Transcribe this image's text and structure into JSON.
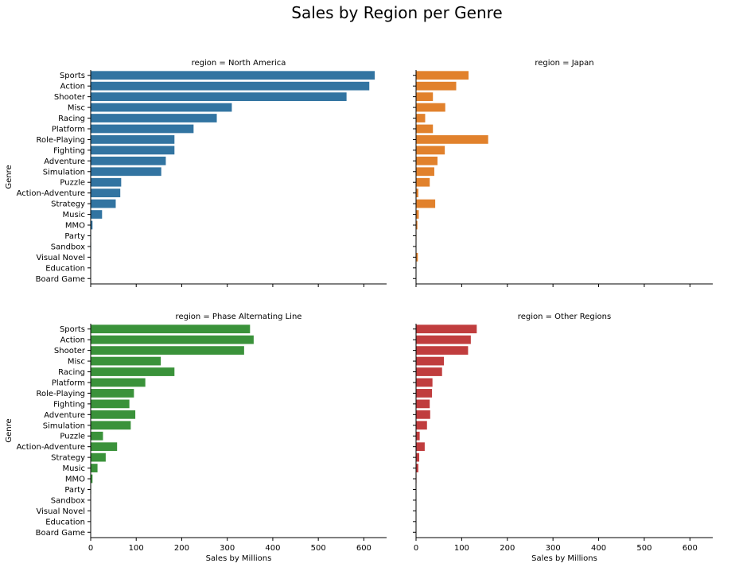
{
  "chart_data": {
    "type": "bar",
    "orientation": "horizontal",
    "title": "Sales by Region per Genre",
    "xlabel": "Sales by Millions",
    "ylabel": "Genre",
    "xlim": [
      0,
      650
    ],
    "x_ticks": [
      0,
      100,
      200,
      300,
      400,
      500,
      600
    ],
    "grid": false,
    "categories": [
      "Sports",
      "Action",
      "Shooter",
      "Misc",
      "Racing",
      "Platform",
      "Role-Playing",
      "Fighting",
      "Adventure",
      "Simulation",
      "Puzzle",
      "Action-Adventure",
      "Strategy",
      "Music",
      "MMO",
      "Party",
      "Sandbox",
      "Visual Novel",
      "Education",
      "Board Game"
    ],
    "panels": [
      {
        "title": "region = North America",
        "color": "#3274a1",
        "values": [
          624,
          612,
          562,
          310,
          277,
          226,
          184,
          184,
          165,
          155,
          67,
          65,
          55,
          25,
          4,
          1,
          1,
          0,
          0,
          0
        ]
      },
      {
        "title": "region = Japan",
        "color": "#e1812c",
        "values": [
          115,
          88,
          37,
          64,
          20,
          37,
          158,
          63,
          47,
          40,
          30,
          5,
          42,
          6,
          3,
          1,
          0,
          4,
          0,
          0
        ]
      },
      {
        "title": "region = Phase Alternating Line",
        "color": "#3a923a",
        "values": [
          350,
          358,
          337,
          154,
          184,
          120,
          95,
          85,
          98,
          88,
          27,
          58,
          33,
          15,
          4,
          1,
          0,
          0,
          0,
          0
        ]
      },
      {
        "title": "region = Other Regions",
        "color": "#c03d3e",
        "values": [
          133,
          120,
          114,
          61,
          57,
          36,
          35,
          30,
          31,
          24,
          8,
          19,
          7,
          5,
          1,
          0,
          0,
          0,
          0,
          0
        ]
      }
    ]
  }
}
